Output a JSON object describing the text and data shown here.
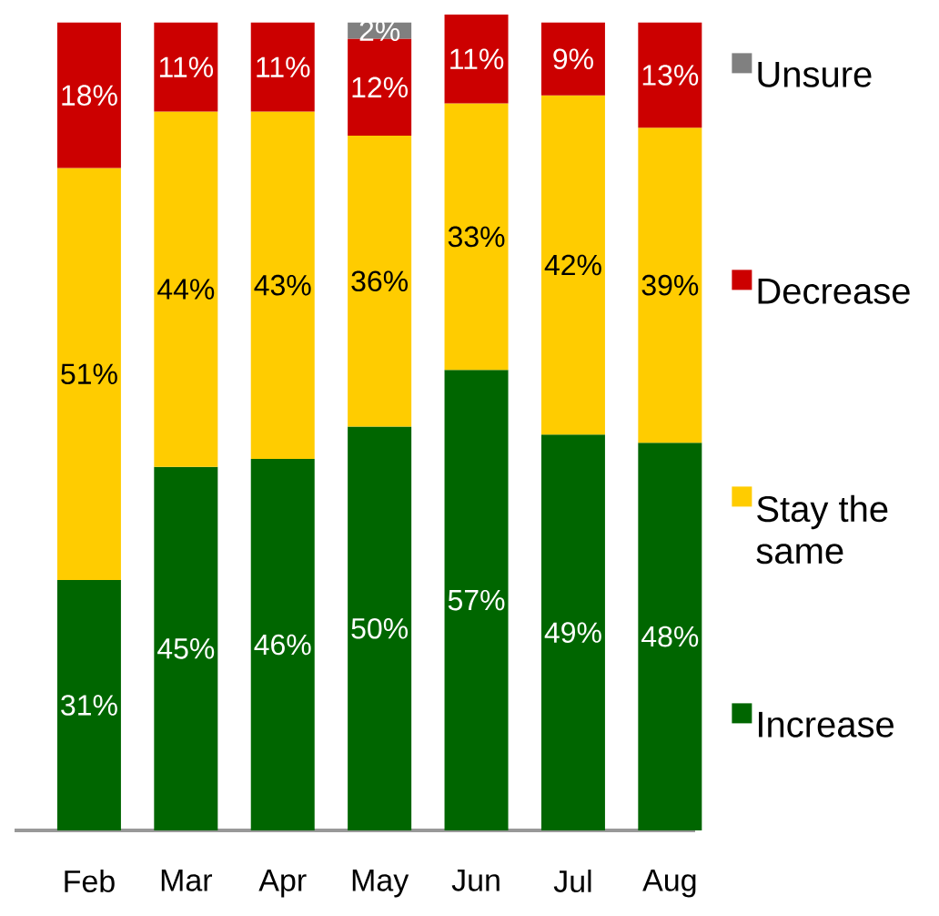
{
  "chart_data": {
    "type": "bar",
    "stacked": true,
    "legend": "right",
    "categories": [
      "Feb",
      "Mar",
      "Apr",
      "May",
      "Jun",
      "Jul",
      "Aug"
    ],
    "series": [
      {
        "name": "Increase",
        "color": "#006600",
        "values": [
          31,
          45,
          46,
          50,
          57,
          49,
          48
        ],
        "value_labels": [
          "31%",
          "45%",
          "46%",
          "50%",
          "57%",
          "49%",
          "48%"
        ]
      },
      {
        "name": "Stay the same",
        "color": "#ffcc00",
        "values": [
          51,
          44,
          43,
          36,
          33,
          42,
          39
        ],
        "value_labels": [
          "51%",
          "44%",
          "43%",
          "36%",
          "33%",
          "42%",
          "39%"
        ]
      },
      {
        "name": "Decrease",
        "color": "#cc0000",
        "values": [
          18,
          11,
          11,
          12,
          11,
          9,
          13
        ],
        "value_labels": [
          "18%",
          "11%",
          "11%",
          "12%",
          "11%",
          "9%",
          "13%"
        ]
      },
      {
        "name": "Unsure",
        "color": "#808080",
        "values": [
          null,
          null,
          null,
          2,
          null,
          null,
          null
        ],
        "value_labels": [
          null,
          null,
          null,
          "2%",
          null,
          null,
          null
        ]
      }
    ]
  }
}
